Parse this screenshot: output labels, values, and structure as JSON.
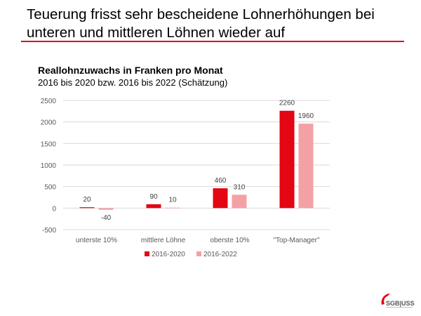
{
  "slide": {
    "title": "Teuerung frisst sehr bescheidene Lohnerhöhungen bei unteren und mittleren Löhnen wieder auf",
    "rule_color": "#e30613"
  },
  "logo": {
    "text": "SGB|USS",
    "icon": "sgb-uss-logo-icon"
  },
  "chart_data": {
    "type": "bar",
    "title": "Reallohnzuwachs in Franken pro Monat",
    "subtitle": "2016 bis 2020 bzw. 2016 bis 2022 (Schätzung)",
    "categories": [
      "unterste 10%",
      "mittlere Löhne",
      "oberste 10%",
      "\"Top-Manager\""
    ],
    "series": [
      {
        "name": "2016-2020",
        "values": [
          20,
          90,
          460,
          2260
        ],
        "color": "#e30613"
      },
      {
        "name": "2016-2022",
        "values": [
          -40,
          10,
          310,
          1960
        ],
        "color": "#f4a1a6"
      }
    ],
    "ylim": [
      -500,
      2500
    ],
    "yticks": [
      -500,
      0,
      500,
      1000,
      1500,
      2000,
      2500
    ],
    "grid": true,
    "legend": "bottom",
    "data_labels": true
  }
}
